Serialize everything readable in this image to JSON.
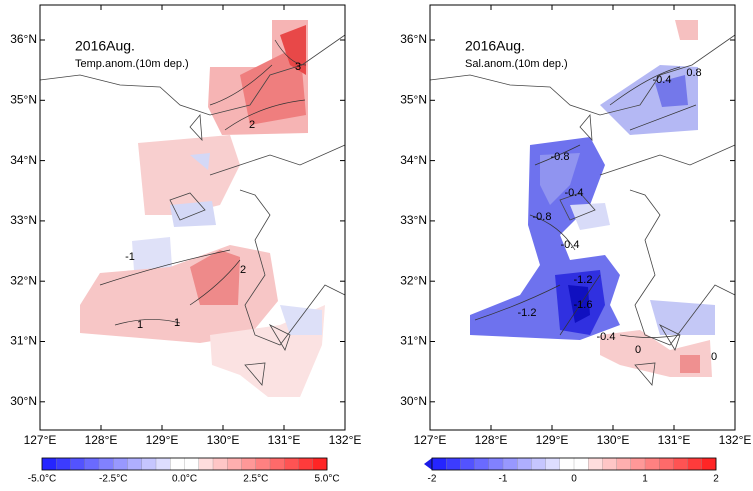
{
  "panels": [
    {
      "title": "2016Aug.",
      "subtitle": "Temp.anom.(10m dep.)",
      "lon_labels": [
        "127°E",
        "128°E",
        "129°E",
        "130°E",
        "131°E",
        "132°E"
      ],
      "lat_labels": [
        "36°N",
        "35°N",
        "34°N",
        "33°N",
        "32°N",
        "31°N",
        "30°N"
      ],
      "contour_labels": [
        "3",
        "2",
        "1",
        "-1",
        "2",
        "1"
      ],
      "colorbar_labels": [
        "-5.0°C",
        "-2.5°C",
        "0.0°C",
        "2.5°C",
        "5.0°C"
      ]
    },
    {
      "title": "2016Aug.",
      "subtitle": "Sal.anom.(10m dep.)",
      "lon_labels": [
        "127°E",
        "128°E",
        "129°E",
        "130°E",
        "131°E",
        "132°E"
      ],
      "lat_labels": [
        "36°N",
        "35°N",
        "34°N",
        "33°N",
        "32°N",
        "31°N",
        "30°N"
      ],
      "contour_labels": [
        "-0.4",
        "0.8",
        "-0.8",
        "-0.4",
        "-0.8",
        "-0.4",
        "-1.2",
        "-1.2",
        "-1.6",
        "-0.4",
        "0",
        "0"
      ],
      "colorbar_labels": [
        "-2",
        "-1",
        "0",
        "1",
        "2"
      ]
    }
  ]
}
